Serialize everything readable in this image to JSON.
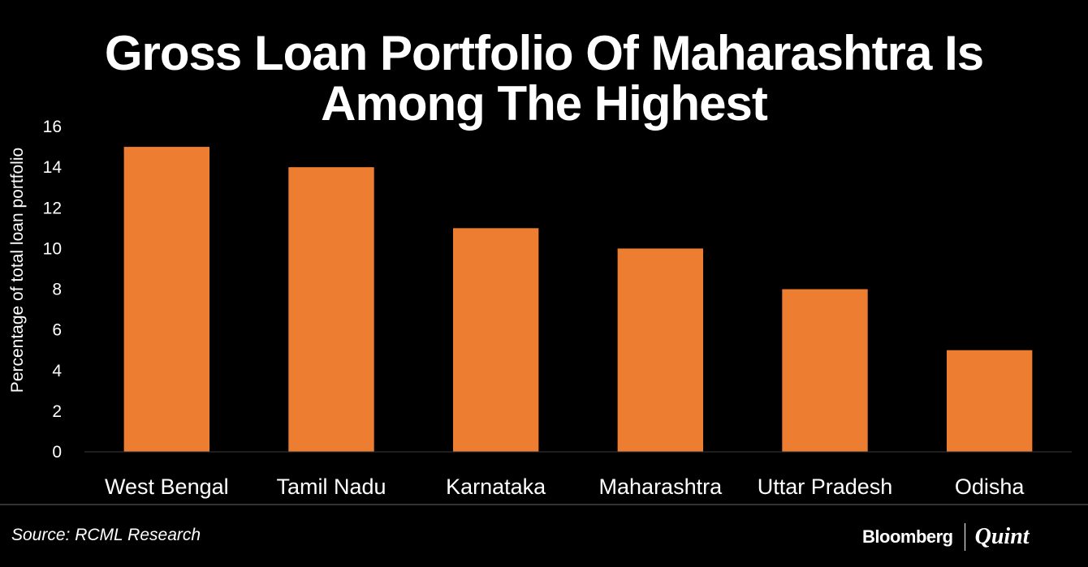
{
  "chart_data": {
    "type": "bar",
    "title_lines": [
      "Gross Loan Portfolio Of Maharashtra Is",
      "Among The Highest"
    ],
    "categories": [
      "West Bengal",
      "Tamil Nadu",
      "Karnataka",
      "Maharashtra",
      "Uttar Pradesh",
      "Odisha"
    ],
    "values": [
      15,
      14,
      11,
      10,
      8,
      5
    ],
    "xlabel": "",
    "ylabel": "Percentage of total loan portfolio",
    "ylim": [
      0,
      16
    ],
    "yticks": [
      0,
      2,
      4,
      6,
      8,
      10,
      12,
      14,
      16
    ],
    "grid": false,
    "legend": "none",
    "bar_color": "#ED7D31",
    "background_color": "#000000",
    "text_color": "#FFFFFF"
  },
  "source": "Source: RCML Research",
  "logo": {
    "left": "Bloomberg",
    "right": "Quint"
  }
}
